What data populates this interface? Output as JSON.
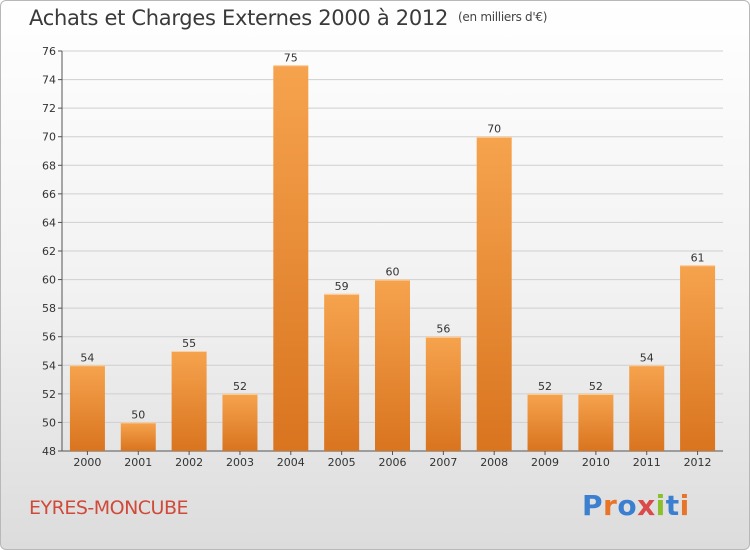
{
  "header": {
    "title": "Achats et Charges Externes 2000 à 2012",
    "unit": "(en milliers d'€)"
  },
  "footer": {
    "commune": "EYRES-MONCUBE",
    "logo_text": "Proxiti",
    "logo_colors": [
      "#3a7fd0",
      "#e8742a",
      "#3a7fd0",
      "#d94a4a",
      "#8cbf2c",
      "#3a7fd0",
      "#e8742a"
    ]
  },
  "colors": {
    "bar_light": "#f6a34e",
    "bar_dark": "#d9741f",
    "axis": "#555555",
    "grid": "#cfcfcf"
  },
  "chart_data": {
    "type": "bar",
    "categories": [
      "2000",
      "2001",
      "2002",
      "2003",
      "2004",
      "2005",
      "2006",
      "2007",
      "2008",
      "2009",
      "2010",
      "2011",
      "2012"
    ],
    "values": [
      54,
      50,
      55,
      52,
      75,
      59,
      60,
      56,
      70,
      52,
      52,
      54,
      61
    ],
    "ylim": [
      48,
      76
    ],
    "yticks": [
      48,
      50,
      52,
      54,
      56,
      58,
      60,
      62,
      64,
      66,
      68,
      70,
      72,
      74,
      76
    ],
    "grid": true,
    "legend": "none"
  }
}
